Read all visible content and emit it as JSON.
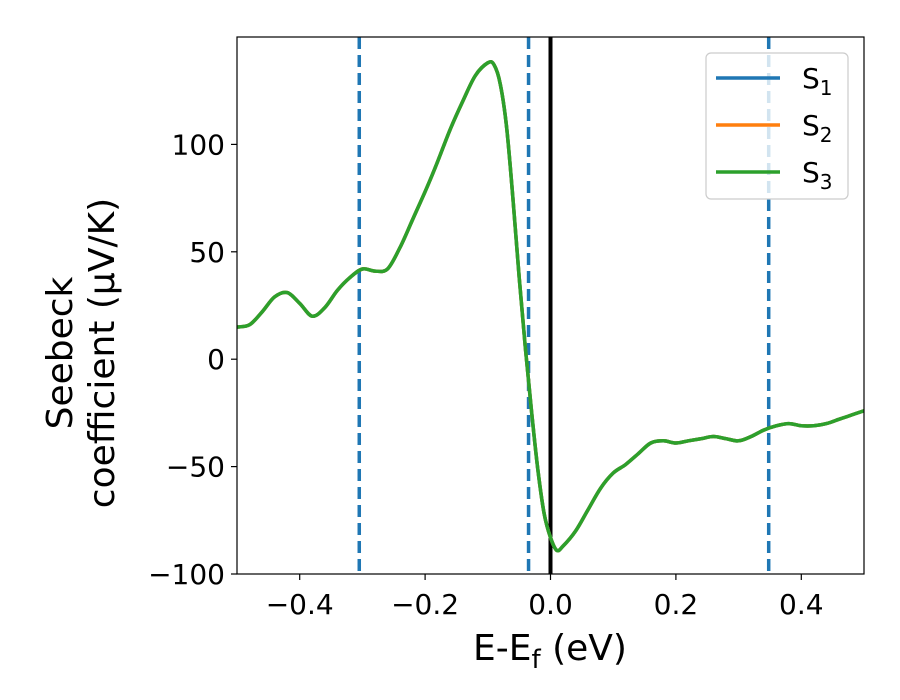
{
  "chart_data": {
    "type": "line",
    "xlabel": "E-E",
    "xlabel_sub": "f",
    "xlabel_unit": " (eV)",
    "ylabel_line1": "Seebeck",
    "ylabel_line2": "coefficient  (μV/K)",
    "xlim": [
      -0.5,
      0.5
    ],
    "ylim": [
      -100,
      150
    ],
    "xticks": [
      -0.4,
      -0.2,
      0.0,
      0.2,
      0.4
    ],
    "xtick_labels": [
      "−0.4",
      "−0.2",
      "0.0",
      "0.2",
      "0.4"
    ],
    "yticks": [
      -100,
      -50,
      0,
      50,
      100
    ],
    "ytick_labels": [
      "−100",
      "−50",
      "0",
      "50",
      "100"
    ],
    "grid": false,
    "legend_position": "top-right",
    "series": [
      {
        "name": "S",
        "sub": "1",
        "color": "#1f77b4"
      },
      {
        "name": "S",
        "sub": "2",
        "color": "#ff7f0e"
      },
      {
        "name": "S",
        "sub": "3",
        "color": "#2ca02c"
      }
    ],
    "curve": {
      "x": [
        -0.5,
        -0.48,
        -0.46,
        -0.44,
        -0.42,
        -0.4,
        -0.38,
        -0.36,
        -0.34,
        -0.32,
        -0.3,
        -0.28,
        -0.26,
        -0.24,
        -0.22,
        -0.2,
        -0.18,
        -0.16,
        -0.14,
        -0.12,
        -0.1,
        -0.09,
        -0.08,
        -0.07,
        -0.06,
        -0.05,
        -0.04,
        -0.03,
        -0.02,
        -0.01,
        0.0,
        0.01,
        0.02,
        0.04,
        0.06,
        0.08,
        0.1,
        0.12,
        0.14,
        0.16,
        0.18,
        0.2,
        0.22,
        0.24,
        0.26,
        0.28,
        0.3,
        0.32,
        0.34,
        0.36,
        0.38,
        0.4,
        0.42,
        0.44,
        0.46,
        0.48,
        0.5
      ],
      "y": [
        15,
        16,
        22,
        29,
        31,
        26,
        20,
        24,
        32,
        38,
        42,
        41,
        42,
        52,
        65,
        78,
        92,
        107,
        120,
        132,
        138,
        137,
        128,
        108,
        75,
        38,
        5,
        -25,
        -52,
        -72,
        -83,
        -89,
        -87,
        -80,
        -70,
        -60,
        -53,
        -49,
        -44,
        -39,
        -38,
        -39,
        -38,
        -37,
        -36,
        -37,
        -38,
        -36,
        -33,
        -31,
        -30,
        -31,
        -31,
        -30,
        -28,
        -26,
        -24
      ]
    },
    "vlines_dashed": [
      -0.305,
      -0.035,
      0.348
    ],
    "vline_solid": 0.0,
    "dashed_color": "#1f77b4",
    "solid_color": "#000000"
  }
}
